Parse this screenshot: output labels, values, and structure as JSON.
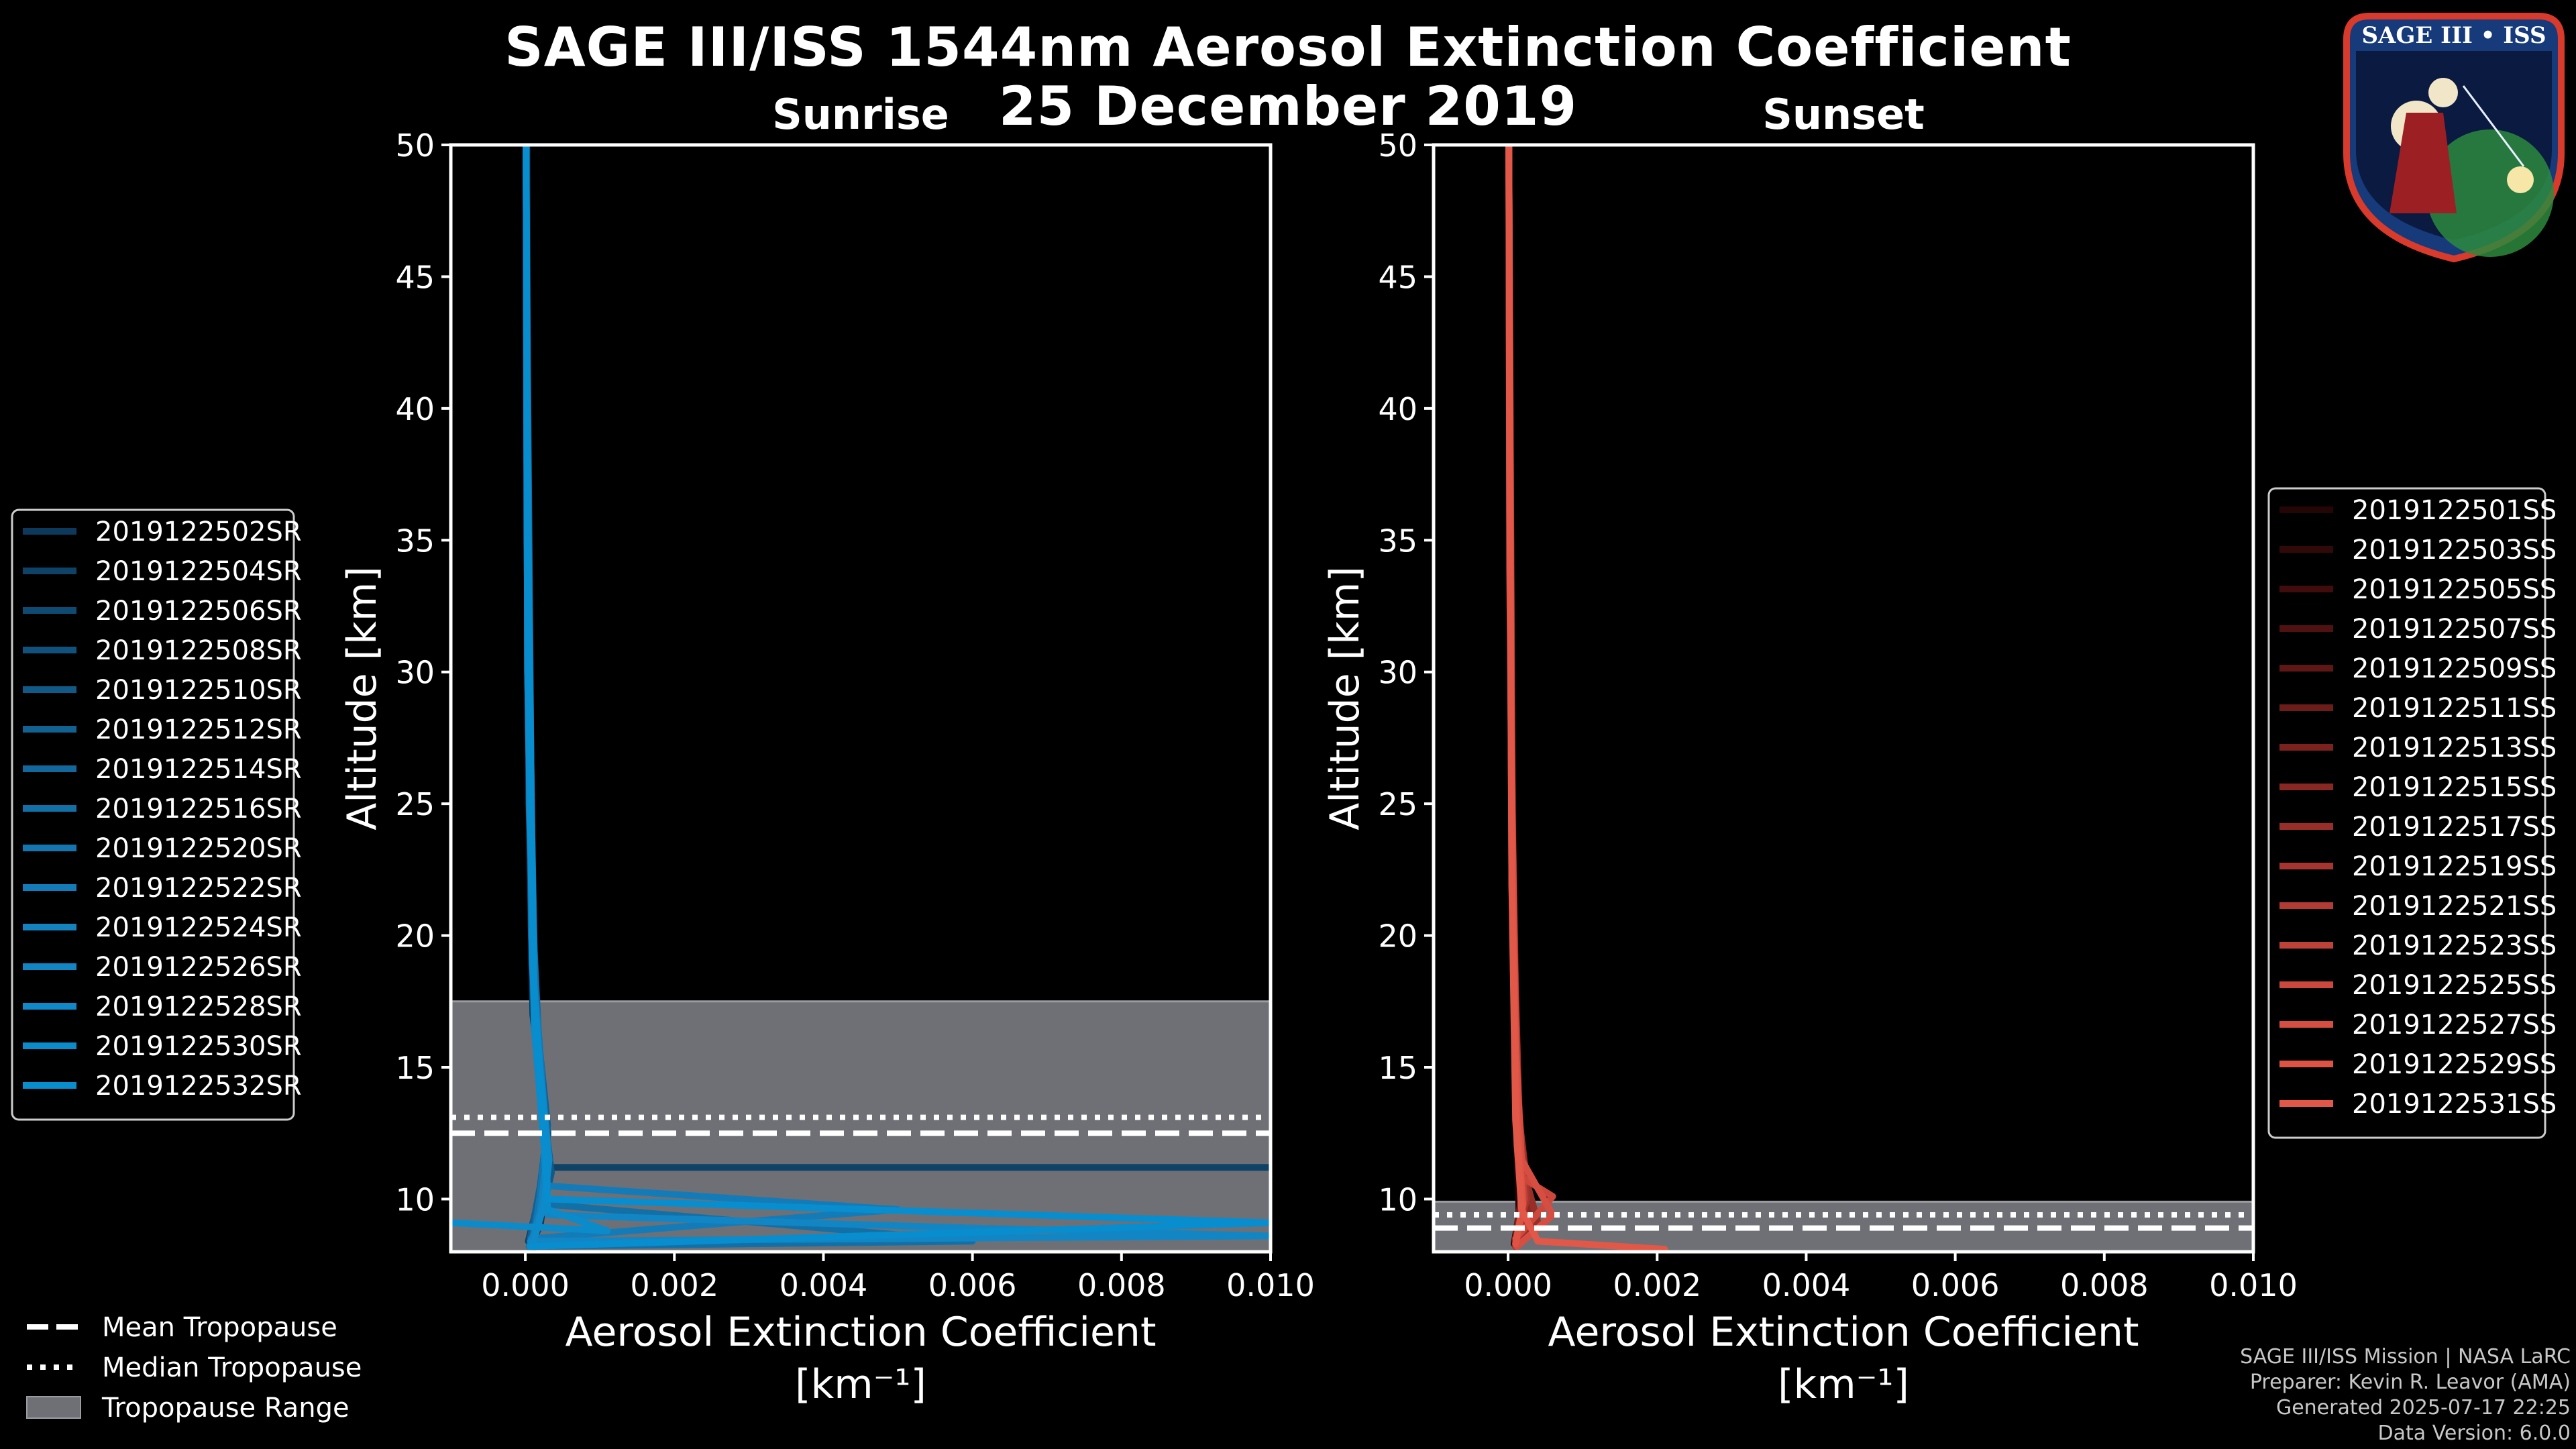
{
  "title_line1": "SAGE III/ISS 1544nm Aerosol Extinction Coefficient",
  "title_line2": "25 December 2019",
  "logo_text": "SAGE III • ISS",
  "credits": [
    "SAGE III/ISS Mission | NASA LaRC",
    "Preparer: Kevin R. Leavor (AMA)",
    "Generated 2025-07-17 22:25",
    "Data Version: 6.0.0"
  ],
  "bottom_legend": [
    {
      "label": "Mean Tropopause",
      "style": "dashed"
    },
    {
      "label": "Median Tropopause",
      "style": "dotted"
    },
    {
      "label": "Tropopause Range",
      "style": "patch"
    }
  ],
  "colors": {
    "background": "#000000",
    "sunrise": "#0b87c9",
    "sunset": "#e05544",
    "tropopause_range": "#6e7076"
  },
  "chart_data": [
    {
      "type": "line",
      "title": "Sunrise",
      "xlabel": "Aerosol Extinction Coefficient",
      "xunit": "[km⁻¹]",
      "ylabel": "Altitude [km]",
      "xlim": [
        -0.001,
        0.01
      ],
      "ylim": [
        8,
        50
      ],
      "xticks": [
        0.0,
        0.002,
        0.004,
        0.006,
        0.008,
        0.01
      ],
      "xtick_labels": [
        "0.000",
        "0.002",
        "0.004",
        "0.006",
        "0.008",
        "0.010"
      ],
      "yticks": [
        10,
        15,
        20,
        25,
        30,
        35,
        40,
        45,
        50
      ],
      "ytick_labels": [
        "10",
        "15",
        "20",
        "25",
        "30",
        "35",
        "40",
        "45",
        "50"
      ],
      "tropopause": {
        "mean": 12.5,
        "median": 13.1,
        "range": [
          8,
          17.5
        ]
      },
      "legend_position": "left",
      "series": [
        {
          "name": "2019122502SR",
          "color": "#0d3a5c",
          "points": [
            [
              6e-05,
              8.2
            ],
            [
              0.0002,
              9
            ],
            [
              0.00025,
              10
            ],
            [
              0.0003,
              12
            ],
            [
              0.00022,
              14
            ],
            [
              0.0001,
              17
            ],
            [
              5e-05,
              25
            ],
            [
              2e-05,
              50
            ]
          ]
        },
        {
          "name": "2019122504SR",
          "color": "#0e4266",
          "points": [
            [
              4e-05,
              8.4
            ],
            [
              0.00018,
              10
            ],
            [
              0.00028,
              11.2
            ],
            [
              0.01,
              11.2
            ]
          ]
        },
        {
          "name": "2019122506SR",
          "color": "#0f4a72",
          "points": [
            [
              0.0001,
              8.1
            ],
            [
              0.00022,
              9.5
            ],
            [
              0.0003,
              11
            ],
            [
              0.0002,
              14
            ],
            [
              0.0001,
              18
            ],
            [
              3e-05,
              30
            ],
            [
              1e-05,
              50
            ]
          ]
        },
        {
          "name": "2019122508SR",
          "color": "#10527d",
          "points": [
            [
              6e-05,
              8.3
            ],
            [
              0.0002,
              10
            ],
            [
              0.0003,
              12.5
            ],
            [
              0.0002,
              15
            ],
            [
              8e-05,
              20
            ],
            [
              2e-05,
              35
            ],
            [
              1e-05,
              50
            ]
          ]
        },
        {
          "name": "2019122510SR",
          "color": "#115a88",
          "points": [
            [
              8e-05,
              8.2
            ],
            [
              0.00025,
              9.8
            ],
            [
              0.00035,
              11
            ],
            [
              0.00022,
              14
            ],
            [
              0.0001,
              19
            ],
            [
              3e-05,
              40
            ],
            [
              1e-05,
              50
            ]
          ]
        },
        {
          "name": "2019122512SR",
          "color": "#126193",
          "points": [
            [
              6e-05,
              8.4
            ],
            [
              0.0002,
              10.5
            ],
            [
              0.0003,
              12.8
            ],
            [
              0.00018,
              16
            ],
            [
              0.00012,
              19.5
            ],
            [
              3e-05,
              32
            ],
            [
              1e-05,
              50
            ]
          ]
        },
        {
          "name": "2019122514SR",
          "color": "#12689d",
          "points": [
            [
              8e-05,
              8.3
            ],
            [
              0.00022,
              10
            ],
            [
              0.0003,
              12
            ],
            [
              0.0002,
              15
            ],
            [
              0.0001,
              18.5
            ],
            [
              2e-05,
              45
            ],
            [
              1e-05,
              50
            ]
          ]
        },
        {
          "name": "2019122516SR",
          "color": "#1370a7",
          "points": [
            [
              5e-05,
              8.2
            ],
            [
              0.006,
              8.4
            ],
            [
              0.0003,
              9.8
            ],
            [
              0.00025,
              13
            ],
            [
              0.00015,
              17
            ],
            [
              5e-05,
              25
            ],
            [
              1e-05,
              50
            ]
          ]
        },
        {
          "name": "2019122520SR",
          "color": "#1376b0",
          "points": [
            [
              0.0001,
              8.3
            ],
            [
              0.0002,
              10.2
            ],
            [
              0.00028,
              12.4
            ],
            [
              0.0002,
              15.5
            ],
            [
              0.0001,
              19
            ],
            [
              3e-05,
              30
            ],
            [
              1e-05,
              50
            ]
          ]
        },
        {
          "name": "2019122522SR",
          "color": "#137cb8",
          "points": [
            [
              8e-05,
              8.5
            ],
            [
              0.005,
              9.6
            ],
            [
              0.0003,
              10.5
            ],
            [
              0.0002,
              14
            ],
            [
              0.0001,
              19
            ],
            [
              2e-05,
              38
            ],
            [
              1e-05,
              50
            ]
          ]
        },
        {
          "name": "2019122524SR",
          "color": "#1382bf",
          "points": [
            [
              6e-05,
              8.2
            ],
            [
              0.0002,
              9.5
            ],
            [
              0.0003,
              11.8
            ],
            [
              0.0002,
              15
            ],
            [
              9e-05,
              19
            ],
            [
              2e-05,
              42
            ],
            [
              1e-05,
              50
            ]
          ]
        },
        {
          "name": "2019122526SR",
          "color": "#1286c4",
          "points": [
            [
              7e-05,
              8.4
            ],
            [
              0.01,
              8.6
            ],
            [
              0.006,
              8.9
            ],
            [
              0.0003,
              9.4
            ],
            [
              0.00025,
              12.5
            ],
            [
              0.00012,
              17
            ],
            [
              3e-05,
              30
            ],
            [
              1e-05,
              50
            ]
          ]
        },
        {
          "name": "2019122528SR",
          "color": "#0f89c8",
          "points": [
            [
              0.0001,
              8.3
            ],
            [
              0.00025,
              9.8
            ],
            [
              0.00032,
              11.5
            ],
            [
              0.0002,
              14.8
            ],
            [
              0.0001,
              18.8
            ],
            [
              3e-05,
              34
            ],
            [
              1e-05,
              50
            ]
          ]
        },
        {
          "name": "2019122530SR",
          "color": "#0c8bcb",
          "points": [
            [
              -0.001,
              9.1
            ],
            [
              0.0011,
              8.8
            ],
            [
              0.0003,
              9.6
            ],
            [
              0.00025,
              12
            ],
            [
              0.00012,
              16.5
            ],
            [
              4e-05,
              28
            ],
            [
              1e-05,
              50
            ]
          ]
        },
        {
          "name": "2019122532SR",
          "color": "#088dce",
          "points": [
            [
              6e-05,
              8.2
            ],
            [
              0.01,
              9.1
            ],
            [
              0.0003,
              10
            ],
            [
              0.00025,
              12.8
            ],
            [
              0.00012,
              17.5
            ],
            [
              3e-05,
              36
            ],
            [
              1e-05,
              50
            ]
          ]
        }
      ]
    },
    {
      "type": "line",
      "title": "Sunset",
      "xlabel": "Aerosol Extinction Coefficient",
      "xunit": "[km⁻¹]",
      "ylabel": "Altitude [km]",
      "xlim": [
        -0.001,
        0.01
      ],
      "ylim": [
        8,
        50
      ],
      "xticks": [
        0.0,
        0.002,
        0.004,
        0.006,
        0.008,
        0.01
      ],
      "xtick_labels": [
        "0.000",
        "0.002",
        "0.004",
        "0.006",
        "0.008",
        "0.010"
      ],
      "yticks": [
        10,
        15,
        20,
        25,
        30,
        35,
        40,
        45,
        50
      ],
      "ytick_labels": [
        "10",
        "15",
        "20",
        "25",
        "30",
        "35",
        "40",
        "45",
        "50"
      ],
      "tropopause": {
        "mean": 8.9,
        "median": 9.4,
        "range": [
          8,
          9.9
        ]
      },
      "legend_position": "right",
      "series": [
        {
          "name": "2019122501SS",
          "color": "#240606",
          "points": [
            [
              0.0001,
              8.2
            ],
            [
              0.00015,
              9
            ],
            [
              0.00012,
              12
            ],
            [
              8e-05,
              20
            ],
            [
              3e-05,
              35
            ],
            [
              1e-05,
              50
            ]
          ]
        },
        {
          "name": "2019122503SS",
          "color": "#320909",
          "points": [
            [
              8e-05,
              8.3
            ],
            [
              0.00018,
              10
            ],
            [
              0.0001,
              14
            ],
            [
              5e-05,
              25
            ],
            [
              1e-05,
              50
            ]
          ]
        },
        {
          "name": "2019122505SS",
          "color": "#410d0c",
          "points": [
            [
              0.0001,
              8.2
            ],
            [
              0.0002,
              9.5
            ],
            [
              0.00012,
              13
            ],
            [
              6e-05,
              22
            ],
            [
              2e-05,
              40
            ],
            [
              1e-05,
              50
            ]
          ]
        },
        {
          "name": "2019122507SS",
          "color": "#4f1210",
          "points": [
            [
              0.00012,
              8.4
            ],
            [
              0.00022,
              10
            ],
            [
              0.00012,
              15
            ],
            [
              5e-05,
              24
            ],
            [
              1e-05,
              50
            ]
          ]
        },
        {
          "name": "2019122509SS",
          "color": "#5e1714",
          "points": [
            [
              0.0001,
              8.2
            ],
            [
              0.0003,
              9
            ],
            [
              0.00015,
              12.5
            ],
            [
              7e-05,
              20
            ],
            [
              2e-05,
              38
            ],
            [
              1e-05,
              50
            ]
          ]
        },
        {
          "name": "2019122511SS",
          "color": "#6c1d19",
          "points": [
            [
              0.0001,
              8.3
            ],
            [
              0.00025,
              9.8
            ],
            [
              0.00012,
              14
            ],
            [
              6e-05,
              23
            ],
            [
              1e-05,
              50
            ]
          ]
        },
        {
          "name": "2019122513SS",
          "color": "#7b221e",
          "points": [
            [
              0.0001,
              8.5
            ],
            [
              0.0002,
              10.5
            ],
            [
              0.00012,
              15
            ],
            [
              5e-05,
              26
            ],
            [
              1e-05,
              50
            ]
          ]
        },
        {
          "name": "2019122515SS",
          "color": "#892823",
          "points": [
            [
              0.00012,
              8.2
            ],
            [
              0.0003,
              9.6
            ],
            [
              0.00015,
              13
            ],
            [
              7e-05,
              21
            ],
            [
              2e-05,
              36
            ],
            [
              1e-05,
              50
            ]
          ]
        },
        {
          "name": "2019122517SS",
          "color": "#972e28",
          "points": [
            [
              0.0001,
              8.3
            ],
            [
              0.0004,
              9.1
            ],
            [
              0.00012,
              12
            ],
            [
              6e-05,
              20
            ],
            [
              2e-05,
              42
            ],
            [
              1e-05,
              50
            ]
          ]
        },
        {
          "name": "2019122519SS",
          "color": "#a5352e",
          "points": [
            [
              0.0001,
              8.4
            ],
            [
              0.00025,
              10
            ],
            [
              0.00014,
              13.5
            ],
            [
              6e-05,
              22
            ],
            [
              1e-05,
              50
            ]
          ]
        },
        {
          "name": "2019122521SS",
          "color": "#b23b33",
          "points": [
            [
              0.0001,
              8.2
            ],
            [
              0.0002,
              9.5
            ],
            [
              0.00012,
              12
            ],
            [
              7e-05,
              19
            ],
            [
              2e-05,
              34
            ],
            [
              1e-05,
              50
            ]
          ]
        },
        {
          "name": "2019122523SS",
          "color": "#bf4238",
          "points": [
            [
              0.0001,
              8.3
            ],
            [
              0.00022,
              10
            ],
            [
              0.00012,
              14
            ],
            [
              5e-05,
              25
            ],
            [
              1e-05,
              50
            ]
          ]
        },
        {
          "name": "2019122525SS",
          "color": "#cc483d",
          "points": [
            [
              0.0001,
              8.5
            ],
            [
              0.0006,
              10.1
            ],
            [
              0.0002,
              10.8
            ],
            [
              0.0001,
              14
            ],
            [
              5e-05,
              24
            ],
            [
              1e-05,
              50
            ]
          ]
        },
        {
          "name": "2019122527SS",
          "color": "#d64e41",
          "points": [
            [
              0.00012,
              8.2
            ],
            [
              0.0006,
              9.4
            ],
            [
              0.00018,
              11.5
            ],
            [
              0.0001,
              16
            ],
            [
              4e-05,
              28
            ],
            [
              1e-05,
              50
            ]
          ]
        },
        {
          "name": "2019122529SS",
          "color": "#de5344",
          "points": [
            [
              0.0001,
              8.3
            ],
            [
              0.0002,
              9.8
            ],
            [
              0.00012,
              13
            ],
            [
              5e-05,
              22
            ],
            [
              2e-05,
              40
            ],
            [
              1e-05,
              50
            ]
          ]
        },
        {
          "name": "2019122531SS",
          "color": "#e25848",
          "points": [
            [
              0.0021,
              8.1
            ],
            [
              0.0004,
              8.4
            ],
            [
              0.00018,
              9.6
            ],
            [
              0.0001,
              13
            ],
            [
              5e-05,
              22
            ],
            [
              2e-05,
              38
            ],
            [
              1e-05,
              50
            ]
          ]
        }
      ]
    }
  ]
}
